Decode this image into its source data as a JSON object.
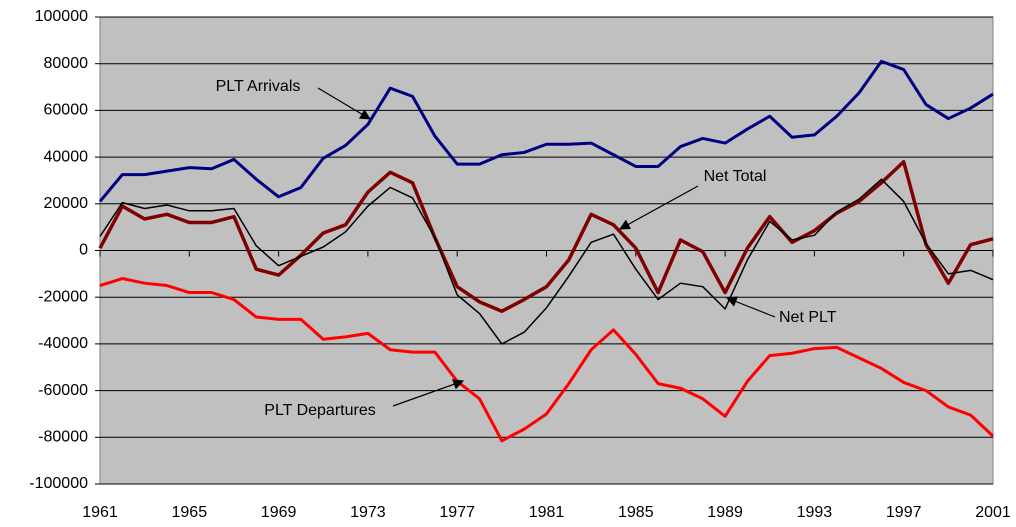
{
  "chart_data": {
    "type": "line",
    "x": [
      1961,
      1962,
      1963,
      1964,
      1965,
      1966,
      1967,
      1968,
      1969,
      1970,
      1971,
      1972,
      1973,
      1974,
      1975,
      1976,
      1977,
      1978,
      1979,
      1980,
      1981,
      1982,
      1983,
      1984,
      1985,
      1986,
      1987,
      1988,
      1989,
      1990,
      1991,
      1992,
      1993,
      1994,
      1995,
      1996,
      1997,
      1998,
      1999,
      2000,
      2001
    ],
    "xlim": [
      1961,
      2001
    ],
    "xticks": [
      1961,
      1965,
      1969,
      1973,
      1977,
      1981,
      1985,
      1989,
      1993,
      1997,
      2001
    ],
    "ylim": [
      -100000,
      100000
    ],
    "yticks": [
      -100000,
      -80000,
      -60000,
      -40000,
      -20000,
      0,
      20000,
      40000,
      60000,
      80000,
      100000
    ],
    "grid": true,
    "series": [
      {
        "name": "PLT Arrivals",
        "color": "#000080",
        "values": [
          21000,
          32500,
          32500,
          34000,
          35500,
          35000,
          39000,
          30500,
          23000,
          27000,
          39500,
          45000,
          54000,
          69500,
          66000,
          49000,
          37000,
          37000,
          41000,
          42000,
          45500,
          45500,
          46000,
          41000,
          36000,
          36000,
          44500,
          48000,
          46000,
          52000,
          57500,
          48500,
          49500,
          57500,
          67500,
          81000,
          77500,
          62500,
          56500,
          61000,
          67000
        ]
      },
      {
        "name": "Net Total",
        "color": "#800000",
        "values": [
          1000,
          19000,
          13500,
          15500,
          12000,
          12000,
          14500,
          -8000,
          -10500,
          -2000,
          7500,
          11000,
          25000,
          33500,
          29000,
          5500,
          -15500,
          -22000,
          -26000,
          -21000,
          -15500,
          -4000,
          15500,
          11000,
          1000,
          -18000,
          4500,
          -500,
          -18000,
          1000,
          14500,
          3500,
          8500,
          16000,
          21000,
          29000,
          38000,
          2500,
          -14000,
          2500,
          5000
        ]
      },
      {
        "name": "Net PLT",
        "color": "#000000",
        "values": [
          6000,
          20500,
          18000,
          19500,
          17000,
          17000,
          18000,
          2000,
          -6500,
          -2500,
          1500,
          8000,
          19000,
          27000,
          22500,
          5500,
          -19000,
          -27000,
          -40000,
          -35000,
          -24500,
          -11000,
          3500,
          7000,
          -8000,
          -21000,
          -14000,
          -15500,
          -25000,
          -4000,
          12500,
          4500,
          6500,
          16500,
          22000,
          30500,
          21000,
          3000,
          -10000,
          -8500,
          -12500
        ]
      },
      {
        "name": "PLT Departures",
        "color": "#ff0000",
        "values": [
          -15000,
          -12000,
          -14000,
          -15000,
          -18000,
          -18000,
          -21000,
          -28500,
          -29500,
          -29500,
          -38000,
          -37000,
          -35500,
          -42500,
          -43500,
          -43500,
          -56000,
          -63500,
          -81500,
          -76500,
          -70000,
          -57000,
          -42500,
          -34000,
          -44500,
          -57000,
          -59000,
          -63500,
          -71000,
          -56000,
          -45000,
          -44000,
          -42000,
          -41500,
          -46000,
          -50500,
          -56500,
          -60000,
          -67000,
          -70500,
          -79500
        ]
      }
    ]
  }
}
